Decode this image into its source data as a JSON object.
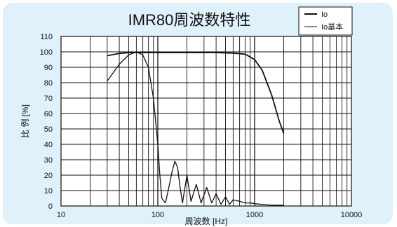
{
  "chart_data": {
    "type": "line",
    "title": "IMR80周波数特性",
    "xlabel": "周波数 [Hz]",
    "ylabel": "比 例 [%]",
    "xscale": "log",
    "xlim": [
      10,
      10000
    ],
    "ylim": [
      0,
      110
    ],
    "x_ticks": [
      "10",
      "100",
      "1000",
      "10000"
    ],
    "y_ticks": [
      "0",
      "10",
      "20",
      "30",
      "40",
      "50",
      "60",
      "70",
      "80",
      "90",
      "100",
      "110"
    ],
    "grid": true,
    "legend_position": "top-right",
    "series": [
      {
        "name": "Io",
        "x": [
          30,
          40,
          50,
          60,
          80,
          100,
          200,
          400,
          600,
          800,
          1000,
          1200,
          1500,
          1800,
          2000
        ],
        "y": [
          97.5,
          99,
          99.5,
          99.5,
          99.5,
          99.5,
          99.5,
          99.5,
          99.2,
          98.5,
          95,
          88,
          72,
          55,
          47
        ]
      },
      {
        "name": "Io基本",
        "x": [
          30,
          40,
          50,
          60,
          70,
          80,
          90,
          95,
          100,
          105,
          110,
          120,
          130,
          140,
          150,
          160,
          170,
          180,
          200,
          220,
          250,
          280,
          320,
          360,
          400,
          450,
          500,
          550,
          600,
          700,
          800,
          900,
          1000,
          1200,
          1500,
          1800,
          2000
        ],
        "y": [
          81,
          92,
          98,
          100,
          98,
          90,
          70,
          55,
          40,
          20,
          5,
          2,
          12,
          22,
          29,
          25,
          12,
          2,
          20,
          3,
          14,
          2,
          12,
          2,
          8,
          1,
          6,
          1,
          4,
          3,
          2,
          2,
          1.5,
          1,
          0.5,
          0.5,
          0.5
        ]
      }
    ]
  }
}
